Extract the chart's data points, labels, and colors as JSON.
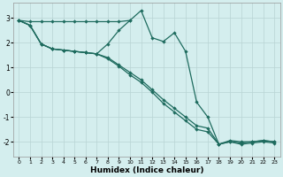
{
  "x": [
    0,
    1,
    2,
    3,
    4,
    5,
    6,
    7,
    8,
    9,
    10,
    11,
    12,
    13,
    14,
    15,
    16,
    17,
    18,
    19,
    20,
    21,
    22,
    23
  ],
  "line_flat": {
    "x": [
      0,
      1,
      2,
      3,
      4,
      5,
      6,
      7,
      8,
      9,
      10
    ],
    "y": [
      2.9,
      2.85,
      2.85,
      2.85,
      2.85,
      2.85,
      2.85,
      2.85,
      2.85,
      2.85,
      2.9
    ]
  },
  "line_peak": [
    2.9,
    2.7,
    1.95,
    1.75,
    1.7,
    1.65,
    1.6,
    1.55,
    1.95,
    2.5,
    2.9,
    3.3,
    2.2,
    2.05,
    2.4,
    1.65,
    -0.4,
    -1.0,
    -2.1,
    -1.95,
    -2.0,
    -2.0,
    -1.95,
    -2.0
  ],
  "line_mid": [
    2.9,
    2.7,
    1.95,
    1.75,
    1.7,
    1.65,
    1.6,
    1.55,
    1.4,
    1.1,
    0.8,
    0.5,
    0.1,
    -0.3,
    -0.65,
    -1.0,
    -1.35,
    -1.45,
    -2.1,
    -2.0,
    -2.05,
    -2.0,
    -1.95,
    -2.0
  ],
  "line_low": [
    2.9,
    2.7,
    1.95,
    1.75,
    1.7,
    1.65,
    1.6,
    1.55,
    1.35,
    1.05,
    0.7,
    0.4,
    0.0,
    -0.45,
    -0.8,
    -1.15,
    -1.5,
    -1.6,
    -2.1,
    -2.0,
    -2.1,
    -2.05,
    -2.0,
    -2.05
  ],
  "bg_color": "#d4eeee",
  "grid_color": "#b8d4d4",
  "line_color": "#1e6b5e",
  "xlabel": "Humidex (Indice chaleur)",
  "xlim": [
    -0.5,
    23.5
  ],
  "ylim": [
    -2.6,
    3.6
  ],
  "yticks": [
    -2,
    -1,
    0,
    1,
    2,
    3
  ],
  "xticks": [
    0,
    1,
    2,
    3,
    4,
    5,
    6,
    7,
    8,
    9,
    10,
    11,
    12,
    13,
    14,
    15,
    16,
    17,
    18,
    19,
    20,
    21,
    22,
    23
  ]
}
